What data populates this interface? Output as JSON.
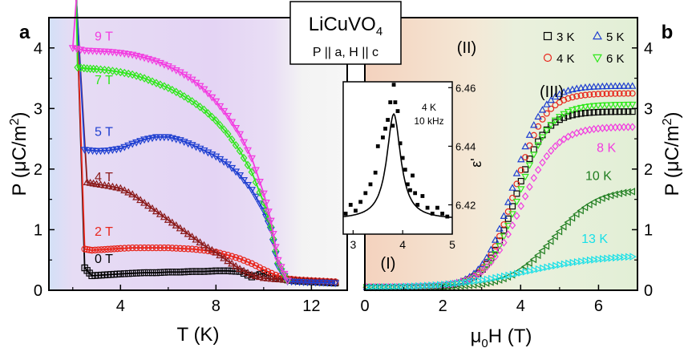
{
  "figure": {
    "compound": "LiCuVO",
    "compound_sub": "4",
    "geometry": "P || a, H || c",
    "unit_prefix": "μ",
    "unit_mid": "C/m",
    "unit_sup": "2"
  },
  "colors": {
    "0T": "#000000",
    "2T": "#e8261c",
    "4T": "#8b1a1a",
    "5T": "#1f3fd0",
    "7T": "#2ee81a",
    "9T": "#f23ce0",
    "3K": "#000000",
    "4K": "#e8261c",
    "5K": "#1f3fd0",
    "6K": "#2ee81a",
    "8K": "#f23ce0",
    "10K": "#1f7d1f",
    "13K": "#18e0e8"
  },
  "chart_data": [
    {
      "type": "scatter",
      "panel_label": "a",
      "xlabel": "T (K)",
      "ylabel": "P",
      "xlim": [
        1,
        13.5
      ],
      "ylim": [
        0,
        4.5
      ],
      "xticks": [
        4,
        8,
        12
      ],
      "yticks": [
        0,
        1,
        2,
        3,
        4
      ],
      "background_regions": [
        "blue",
        "violet",
        "light-gray"
      ],
      "series": [
        {
          "name": "0 T",
          "marker": "square",
          "color_key": "0T",
          "x": [
            2.5,
            2.8,
            3.2,
            3.6,
            4.0,
            4.5,
            5.0,
            5.5,
            6.0,
            6.5,
            7.0,
            7.5,
            8.0,
            8.5,
            9.0,
            9.5,
            10.0,
            10.5,
            11.0,
            11.5,
            12.0,
            12.5,
            13.0
          ],
          "y": [
            0.37,
            0.24,
            0.25,
            0.26,
            0.27,
            0.28,
            0.29,
            0.29,
            0.3,
            0.3,
            0.31,
            0.31,
            0.32,
            0.32,
            0.31,
            0.22,
            0.28,
            0.2,
            0.17,
            0.15,
            0.14,
            0.13,
            0.12
          ]
        },
        {
          "name": "2 T",
          "marker": "circle",
          "color_key": "2T",
          "x": [
            2.5,
            2.8,
            3.2,
            3.6,
            4.0,
            4.5,
            5.0,
            5.5,
            6.0,
            6.5,
            7.0,
            7.5,
            8.0,
            8.5,
            9.0,
            9.5,
            10.0,
            10.5,
            11.0,
            11.5,
            12.0,
            12.5,
            13.0
          ],
          "y": [
            0.68,
            0.66,
            0.67,
            0.68,
            0.69,
            0.7,
            0.7,
            0.7,
            0.7,
            0.69,
            0.68,
            0.66,
            0.63,
            0.58,
            0.52,
            0.44,
            0.34,
            0.25,
            0.19,
            0.17,
            0.16,
            0.15,
            0.14
          ]
        },
        {
          "name": "4 T",
          "marker": "triangle-up",
          "color_key": "4T",
          "x": [
            2.6,
            3.0,
            3.5,
            4.0,
            4.5,
            5.0,
            5.5,
            6.0,
            6.5,
            7.0,
            7.5,
            8.0,
            8.5,
            9.0,
            9.5,
            10.0,
            10.5,
            11.0,
            11.5,
            12.0,
            12.5,
            13.0
          ],
          "y": [
            1.78,
            1.75,
            1.72,
            1.68,
            1.58,
            1.44,
            1.3,
            1.16,
            1.02,
            0.88,
            0.74,
            0.62,
            0.48,
            0.35,
            0.25,
            0.2,
            0.18,
            0.17,
            0.16,
            0.15,
            0.14,
            0.13
          ]
        },
        {
          "name": "5 T",
          "marker": "triangle-down",
          "color_key": "5T",
          "x": [
            2.5,
            3.0,
            3.5,
            4.0,
            4.5,
            5.0,
            5.5,
            6.0,
            6.5,
            7.0,
            7.5,
            8.0,
            8.5,
            9.0,
            9.5,
            10.0,
            10.3,
            10.6,
            11.0,
            11.5,
            12.0,
            12.5,
            13.0
          ],
          "y": [
            2.32,
            2.3,
            2.31,
            2.34,
            2.42,
            2.49,
            2.53,
            2.53,
            2.48,
            2.4,
            2.31,
            2.21,
            2.08,
            1.9,
            1.66,
            1.32,
            1.0,
            0.4,
            0.15,
            0.14,
            0.13,
            0.13,
            0.12
          ]
        },
        {
          "name": "7 T",
          "marker": "diamond",
          "color_key": "7T",
          "x": [
            2.2,
            2.6,
            3.0,
            3.5,
            4.0,
            4.5,
            5.0,
            5.5,
            6.0,
            6.5,
            7.0,
            7.5,
            8.0,
            8.5,
            9.0,
            9.5,
            10.0,
            10.3,
            10.6,
            11.0
          ],
          "y": [
            3.68,
            3.66,
            3.65,
            3.63,
            3.6,
            3.56,
            3.5,
            3.42,
            3.34,
            3.24,
            3.12,
            2.98,
            2.8,
            2.58,
            2.3,
            1.95,
            1.45,
            1.05,
            0.45,
            0.16
          ]
        },
        {
          "name": "9 T",
          "marker": "triangle-down",
          "color_key": "9T",
          "x": [
            2.0,
            2.5,
            3.0,
            3.5,
            4.0,
            4.5,
            5.0,
            5.5,
            6.0,
            6.5,
            7.0,
            7.5,
            8.0,
            8.5,
            9.0,
            9.5,
            10.0,
            10.3,
            10.6,
            11.0
          ],
          "y": [
            4.0,
            3.96,
            3.95,
            3.94,
            3.92,
            3.89,
            3.84,
            3.78,
            3.7,
            3.6,
            3.48,
            3.32,
            3.12,
            2.88,
            2.58,
            2.18,
            1.6,
            1.15,
            0.5,
            0.16
          ]
        }
      ],
      "curve_labels": [
        {
          "text": "9 T",
          "x": 3.3,
          "y": 4.12,
          "color_key": "9T"
        },
        {
          "text": "7 T",
          "x": 3.3,
          "y": 3.4,
          "color_key": "7T"
        },
        {
          "text": "5 T",
          "x": 3.3,
          "y": 2.55,
          "color_key": "5T"
        },
        {
          "text": "4 T",
          "x": 3.3,
          "y": 1.8,
          "color_key": "4T"
        },
        {
          "text": "2 T",
          "x": 3.3,
          "y": 0.9,
          "color_key": "2T"
        },
        {
          "text": "0 T",
          "x": 3.3,
          "y": 0.45,
          "color_key": "0T"
        }
      ]
    },
    {
      "type": "scatter",
      "panel_label": "b",
      "xlabel_pre": "μ",
      "xlabel_sub": "0",
      "xlabel_post": "H (T)",
      "ylabel": "P",
      "xlim": [
        0,
        7
      ],
      "ylim": [
        0,
        4.5
      ],
      "xticks": [
        0,
        2,
        4,
        6
      ],
      "yticks": [
        0,
        1,
        2,
        3,
        4
      ],
      "regions": [
        "(I)",
        "(II)",
        "(III)"
      ],
      "legend": [
        {
          "text": "3 K",
          "marker": "square",
          "color_key": "3K"
        },
        {
          "text": "5 K",
          "marker": "triangle-up",
          "color_key": "5K"
        },
        {
          "text": "4 K",
          "marker": "circle",
          "color_key": "4K"
        },
        {
          "text": "6 K",
          "marker": "triangle-down",
          "color_key": "6K"
        }
      ],
      "series": [
        {
          "name": "3 K",
          "marker": "square",
          "color_key": "3K",
          "amp": 2.9,
          "mid": 3.85,
          "w": 0.38,
          "base": 0.05
        },
        {
          "name": "4 K",
          "marker": "circle",
          "color_key": "4K",
          "amp": 3.2,
          "mid": 3.85,
          "w": 0.38,
          "base": 0.05
        },
        {
          "name": "5 K",
          "marker": "triangle-up",
          "color_key": "5K",
          "amp": 3.32,
          "mid": 3.8,
          "w": 0.38,
          "base": 0.05
        },
        {
          "name": "6 K",
          "marker": "triangle-down",
          "color_key": "6K",
          "amp": 3.02,
          "mid": 3.95,
          "w": 0.4,
          "base": 0.05
        },
        {
          "name": "8 K",
          "marker": "diamond",
          "color_key": "8K",
          "amp": 2.65,
          "mid": 4.0,
          "w": 0.45,
          "base": 0.05
        },
        {
          "name": "10 K",
          "marker": "triangle-left",
          "color_key": "10K",
          "amp": 1.62,
          "mid": 4.85,
          "w": 0.55,
          "base": 0.05
        },
        {
          "name": "13 K",
          "marker": "triangle-right",
          "color_key": "13K",
          "amp": 0.55,
          "mid": 4.2,
          "w": 1.0,
          "base": 0.04
        }
      ],
      "curve_labels": [
        {
          "text": "8 K",
          "x": 6.2,
          "y": 2.28,
          "color_key": "8K"
        },
        {
          "text": "10 K",
          "x": 6.0,
          "y": 1.82,
          "color_key": "10K"
        },
        {
          "text": "13 K",
          "x": 5.9,
          "y": 0.78,
          "color_key": "13K"
        }
      ]
    },
    {
      "type": "scatter",
      "panel_label": "inset",
      "ylabel": "ε'",
      "annotation_line1": "4 K",
      "annotation_line2": "10 kHz",
      "xlim": [
        2.8,
        5.0
      ],
      "ylim": [
        6.41,
        6.462
      ],
      "xticks": [
        3,
        4,
        5
      ],
      "yticks": [
        6.42,
        6.44,
        6.46
      ],
      "points": {
        "x": [
          2.85,
          2.95,
          3.05,
          3.15,
          3.25,
          3.35,
          3.45,
          3.5,
          3.6,
          3.65,
          3.7,
          3.75,
          3.8,
          3.82,
          3.85,
          3.9,
          3.95,
          4.0,
          4.05,
          4.1,
          4.15,
          4.2,
          4.25,
          4.3,
          4.4,
          4.5,
          4.6,
          4.7,
          4.8,
          4.9
        ],
        "y": [
          6.417,
          6.42,
          6.418,
          6.421,
          6.424,
          6.427,
          6.431,
          6.44,
          6.443,
          6.446,
          6.449,
          6.455,
          6.447,
          6.461,
          6.455,
          6.452,
          6.441,
          6.436,
          6.432,
          6.427,
          6.425,
          6.43,
          6.424,
          6.42,
          6.423,
          6.419,
          6.417,
          6.419,
          6.417,
          6.416
        ]
      },
      "fit": {
        "base": 6.415,
        "amp": 0.036,
        "center": 3.82,
        "width": 0.17
      }
    }
  ]
}
